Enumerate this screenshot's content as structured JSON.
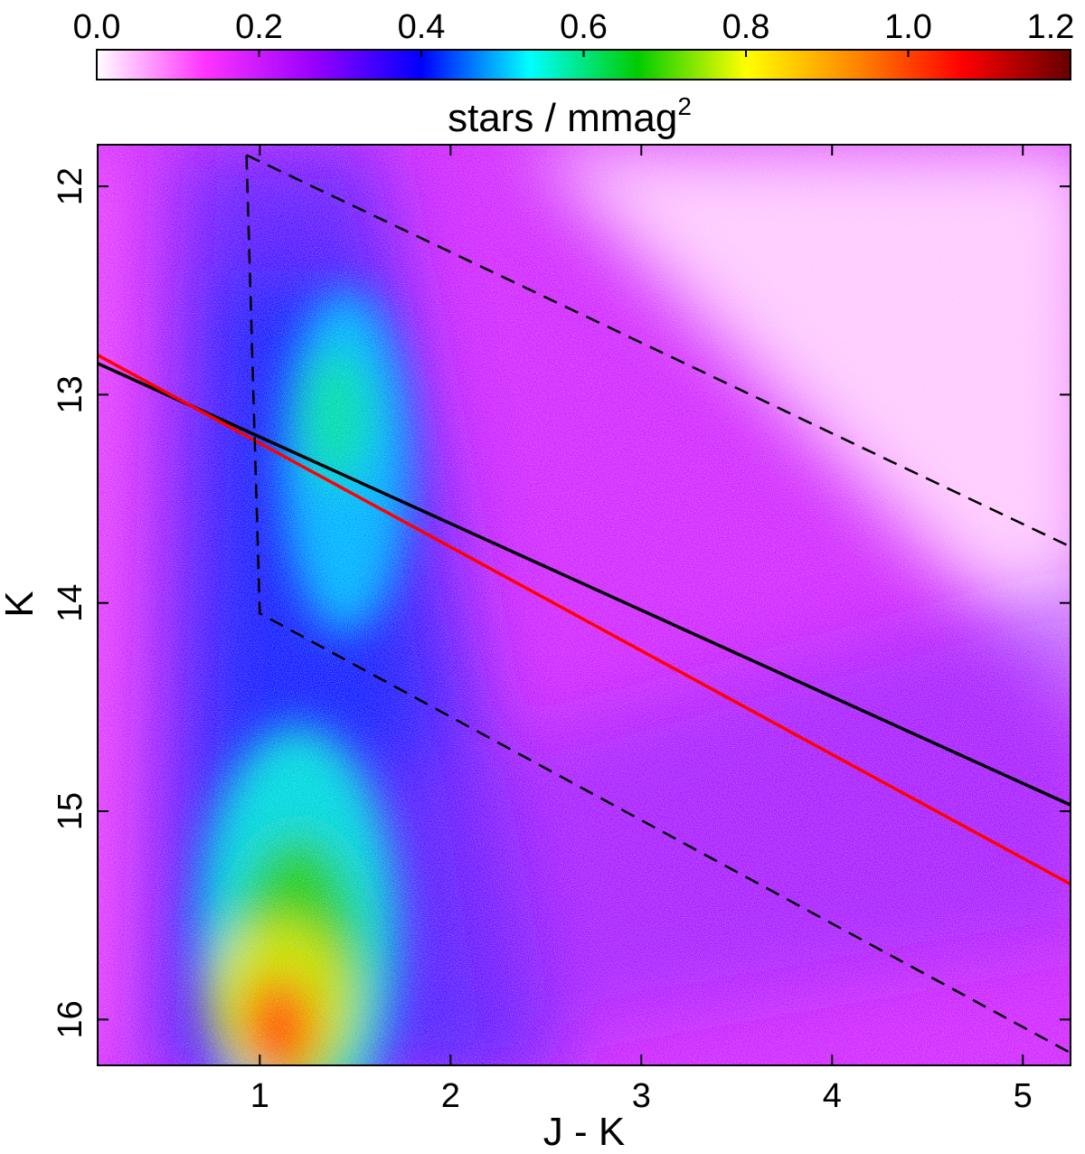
{
  "chart_data": {
    "type": "heatmap",
    "title": "",
    "xlabel": "J - K",
    "ylabel": "K",
    "xlim": [
      0.15,
      5.25
    ],
    "ylim": [
      16.22,
      11.8
    ],
    "y_inverted": true,
    "x_ticks": [
      "1",
      "2",
      "3",
      "4",
      "5"
    ],
    "y_ticks": [
      "12",
      "13",
      "14",
      "15",
      "16"
    ],
    "colorbar": {
      "label": "stars / mmag",
      "label_superscript": "2",
      "range": [
        0.0,
        1.2
      ],
      "ticks": [
        "0.0",
        "0.2",
        "0.4",
        "0.6",
        "0.8",
        "1.0",
        "1.2"
      ],
      "colors": [
        "#ffffff",
        "#ff33ff",
        "#9900ff",
        "#0000ff",
        "#00ffff",
        "#00cc00",
        "#ffff00",
        "#ff8800",
        "#ff0000",
        "#660000"
      ]
    },
    "density_peaks": [
      {
        "x": 1.1,
        "y": 16.0,
        "value": 1.0
      },
      {
        "x": 1.45,
        "y": 13.15,
        "value": 0.55
      },
      {
        "x": 1.2,
        "y": 15.5,
        "value": 0.6
      }
    ],
    "lines": [
      {
        "style": "solid",
        "color": "#000000",
        "points": [
          [
            0.15,
            12.85
          ],
          [
            5.25,
            14.97
          ]
        ]
      },
      {
        "style": "solid",
        "color": "#ff0000",
        "points": [
          [
            0.15,
            12.81
          ],
          [
            5.25,
            15.35
          ]
        ]
      },
      {
        "style": "dashed",
        "color": "#000000",
        "points": [
          [
            0.93,
            11.85
          ],
          [
            1.0,
            14.05
          ],
          [
            5.25,
            16.16
          ]
        ]
      },
      {
        "style": "dashed",
        "color": "#000000",
        "points": [
          [
            0.93,
            11.85
          ],
          [
            5.25,
            13.73
          ]
        ]
      }
    ]
  }
}
